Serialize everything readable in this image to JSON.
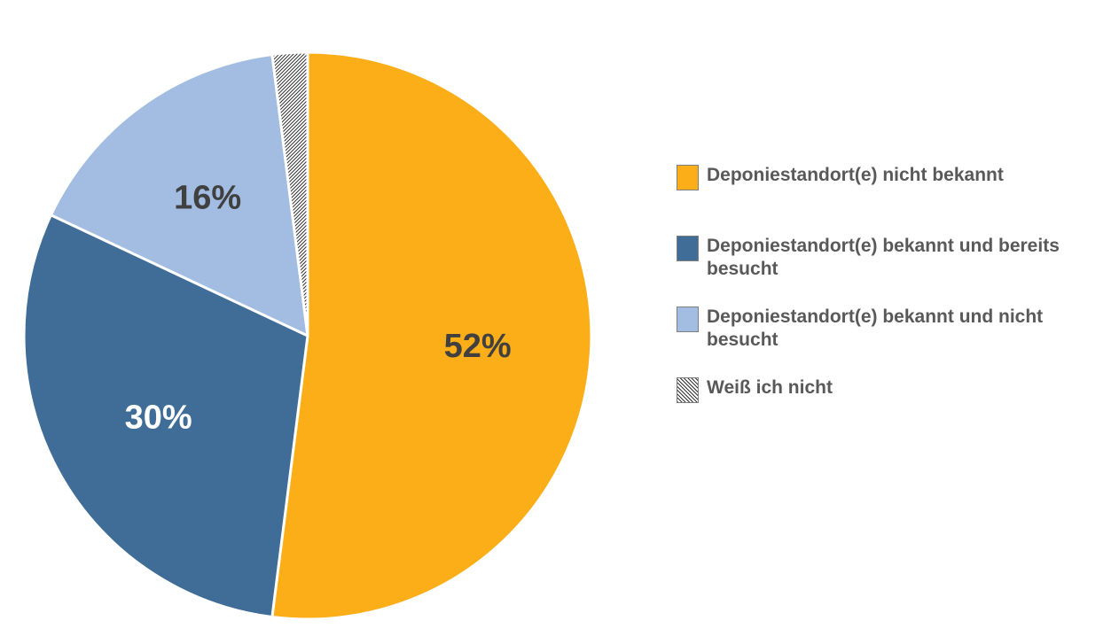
{
  "chart_data": {
    "type": "pie",
    "slices": [
      {
        "label": "Deponiestandort(e) nicht bekannt",
        "value": 52,
        "display": "52%",
        "color": "#FBAE17",
        "label_color": "#404040"
      },
      {
        "label": "Deponiestandort(e) bekannt und bereits besucht",
        "value": 30,
        "display": "30%",
        "color": "#3F6D97",
        "label_color": "#FFFFFF"
      },
      {
        "label": "Deponiestandort(e) bekannt und nicht besucht",
        "value": 16,
        "display": "16%",
        "color": "#A2BDE1",
        "label_color": "#404040"
      },
      {
        "label": "Weiß ich nicht",
        "value": 2,
        "display": "",
        "color": "hatched",
        "label_color": "#404040"
      }
    ],
    "start_angle": "12 o'clock",
    "direction": "clockwise",
    "legend_position": "right"
  },
  "legend": {
    "items": [
      {
        "label": "Deponiestandort(e) nicht bekannt",
        "swatch": "#FBAE17"
      },
      {
        "label": "Deponiestandort(e) bekannt und bereits\nbesucht",
        "swatch": "#3F6D97"
      },
      {
        "label": "Deponiestandort(e) bekannt und nicht\nbesucht",
        "swatch": "#A2BDE1"
      },
      {
        "label": "Weiß ich nicht",
        "swatch": "hatched"
      }
    ]
  }
}
